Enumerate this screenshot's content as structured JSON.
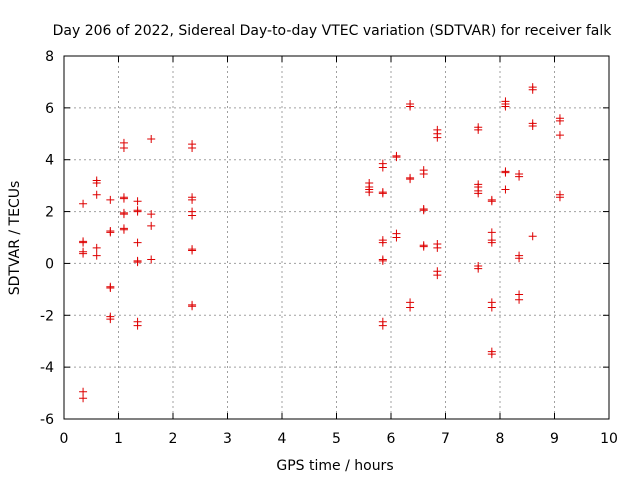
{
  "chart_data": {
    "type": "scatter",
    "title": "Day 206 of 2022, Sidereal Day-to-day VTEC variation (SDTVAR) for receiver falk",
    "xlabel": "GPS time / hours",
    "ylabel": "SDTVAR / TECUs",
    "xlim": [
      0,
      10
    ],
    "ylim": [
      -6,
      8
    ],
    "xticks": [
      "0",
      "1",
      "2",
      "3",
      "4",
      "5",
      "6",
      "7",
      "8",
      "9",
      "10"
    ],
    "yticks": [
      "-6",
      "-4",
      "-2",
      "0",
      "2",
      "4",
      "6",
      "8"
    ],
    "grid": true,
    "marker": "plus",
    "series_color": "#dd0000",
    "points": [
      [
        0.35,
        2.3
      ],
      [
        0.35,
        0.85
      ],
      [
        0.35,
        0.8
      ],
      [
        0.35,
        0.45
      ],
      [
        0.35,
        0.38
      ],
      [
        0.35,
        -4.95
      ],
      [
        0.35,
        -5.2
      ],
      [
        0.6,
        3.2
      ],
      [
        0.6,
        3.1
      ],
      [
        0.6,
        2.65
      ],
      [
        0.6,
        0.6
      ],
      [
        0.6,
        0.3
      ],
      [
        0.85,
        2.45
      ],
      [
        0.85,
        1.25
      ],
      [
        0.85,
        1.2
      ],
      [
        0.85,
        -0.9
      ],
      [
        0.85,
        -0.95
      ],
      [
        0.85,
        -2.05
      ],
      [
        0.85,
        -2.15
      ],
      [
        1.1,
        4.65
      ],
      [
        1.1,
        4.45
      ],
      [
        1.1,
        2.55
      ],
      [
        1.1,
        2.5
      ],
      [
        1.1,
        1.95
      ],
      [
        1.1,
        1.9
      ],
      [
        1.1,
        1.35
      ],
      [
        1.1,
        1.3
      ],
      [
        1.35,
        2.4
      ],
      [
        1.35,
        2.05
      ],
      [
        1.35,
        2.0
      ],
      [
        1.35,
        0.8
      ],
      [
        1.35,
        0.1
      ],
      [
        1.35,
        0.05
      ],
      [
        1.35,
        -2.25
      ],
      [
        1.35,
        -2.4
      ],
      [
        1.6,
        4.8
      ],
      [
        1.6,
        1.9
      ],
      [
        1.6,
        1.45
      ],
      [
        1.6,
        0.15
      ],
      [
        2.35,
        4.6
      ],
      [
        2.35,
        4.45
      ],
      [
        2.35,
        2.55
      ],
      [
        2.35,
        2.45
      ],
      [
        2.35,
        2.0
      ],
      [
        2.35,
        1.85
      ],
      [
        2.35,
        0.55
      ],
      [
        2.35,
        0.5
      ],
      [
        2.35,
        -1.6
      ],
      [
        2.35,
        -1.65
      ],
      [
        5.6,
        3.1
      ],
      [
        5.6,
        2.95
      ],
      [
        5.6,
        2.85
      ],
      [
        5.6,
        2.75
      ],
      [
        5.85,
        3.85
      ],
      [
        5.85,
        3.7
      ],
      [
        5.85,
        2.75
      ],
      [
        5.85,
        2.7
      ],
      [
        5.85,
        0.9
      ],
      [
        5.85,
        0.8
      ],
      [
        5.85,
        0.15
      ],
      [
        5.85,
        0.1
      ],
      [
        5.85,
        -2.25
      ],
      [
        5.85,
        -2.4
      ],
      [
        6.1,
        4.15
      ],
      [
        6.1,
        4.1
      ],
      [
        6.1,
        1.15
      ],
      [
        6.1,
        1.0
      ],
      [
        6.35,
        6.15
      ],
      [
        6.35,
        6.05
      ],
      [
        6.35,
        3.3
      ],
      [
        6.35,
        3.25
      ],
      [
        6.35,
        -1.5
      ],
      [
        6.35,
        -1.7
      ],
      [
        6.6,
        3.6
      ],
      [
        6.6,
        3.45
      ],
      [
        6.6,
        2.1
      ],
      [
        6.6,
        2.05
      ],
      [
        6.6,
        0.7
      ],
      [
        6.6,
        0.65
      ],
      [
        6.85,
        5.15
      ],
      [
        6.85,
        5.0
      ],
      [
        6.85,
        4.85
      ],
      [
        6.85,
        0.75
      ],
      [
        6.85,
        0.6
      ],
      [
        6.85,
        -0.3
      ],
      [
        6.85,
        -0.45
      ],
      [
        7.6,
        5.25
      ],
      [
        7.6,
        5.15
      ],
      [
        7.6,
        3.05
      ],
      [
        7.6,
        2.95
      ],
      [
        7.6,
        2.8
      ],
      [
        7.6,
        2.7
      ],
      [
        7.6,
        -0.1
      ],
      [
        7.6,
        -0.2
      ],
      [
        7.85,
        2.45
      ],
      [
        7.85,
        2.4
      ],
      [
        7.85,
        1.2
      ],
      [
        7.85,
        0.9
      ],
      [
        7.85,
        0.8
      ],
      [
        7.85,
        -1.5
      ],
      [
        7.85,
        -1.7
      ],
      [
        7.85,
        -3.4
      ],
      [
        7.85,
        -3.5
      ],
      [
        8.1,
        6.25
      ],
      [
        8.1,
        6.15
      ],
      [
        8.1,
        6.05
      ],
      [
        8.1,
        3.55
      ],
      [
        8.1,
        3.5
      ],
      [
        8.1,
        2.85
      ],
      [
        8.35,
        3.45
      ],
      [
        8.35,
        3.35
      ],
      [
        8.35,
        0.3
      ],
      [
        8.35,
        0.2
      ],
      [
        8.35,
        -1.2
      ],
      [
        8.35,
        -1.4
      ],
      [
        8.6,
        6.8
      ],
      [
        8.6,
        6.7
      ],
      [
        8.6,
        5.4
      ],
      [
        8.6,
        5.3
      ],
      [
        8.6,
        1.05
      ],
      [
        9.1,
        5.6
      ],
      [
        9.1,
        5.5
      ],
      [
        9.1,
        4.95
      ],
      [
        9.1,
        2.65
      ],
      [
        9.1,
        2.55
      ]
    ]
  }
}
